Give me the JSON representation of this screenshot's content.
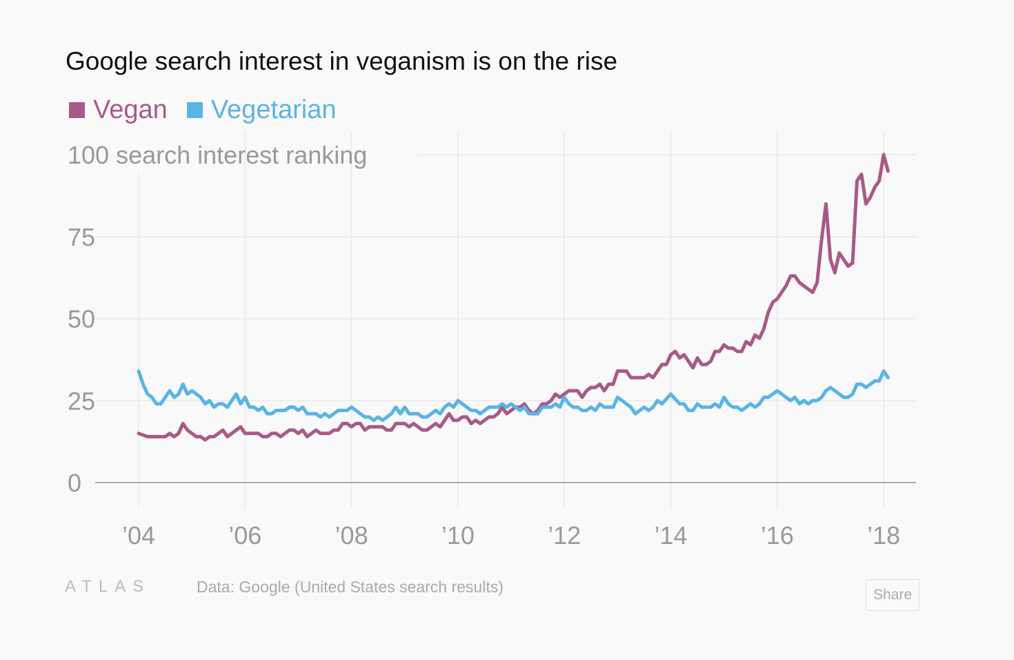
{
  "chart_data": {
    "type": "line",
    "title": "Google search interest in veganism is on the rise",
    "ylabel": "search interest ranking",
    "ylim": [
      0,
      100
    ],
    "yticks": [
      "0",
      "25",
      "50",
      "75",
      "100"
    ],
    "xticks": [
      {
        "date": "2004-01",
        "label": "’04"
      },
      {
        "date": "2006-01",
        "label": "’06"
      },
      {
        "date": "2008-01",
        "label": "’08"
      },
      {
        "date": "2010-01",
        "label": "’10"
      },
      {
        "date": "2012-01",
        "label": "’12"
      },
      {
        "date": "2014-01",
        "label": "’14"
      },
      {
        "date": "2016-01",
        "label": "’16"
      },
      {
        "date": "2018-01",
        "label": "’18"
      }
    ],
    "grid": true,
    "legend_placement": "top-left",
    "series": [
      {
        "name": "Vegan",
        "color": "#a85a87",
        "points": [
          [
            "2004-01",
            15
          ],
          [
            "2004-03",
            14
          ],
          [
            "2004-07",
            14
          ],
          [
            "2004-08",
            15
          ],
          [
            "2004-09",
            14
          ],
          [
            "2004-10",
            15
          ],
          [
            "2004-11",
            18
          ],
          [
            "2004-12",
            16
          ],
          [
            "2005-02",
            14
          ],
          [
            "2005-03",
            14
          ],
          [
            "2005-04",
            13
          ],
          [
            "2005-05",
            14
          ],
          [
            "2005-06",
            14
          ],
          [
            "2005-08",
            16
          ],
          [
            "2005-09",
            14
          ],
          [
            "2005-12",
            17
          ],
          [
            "2006-01",
            15
          ],
          [
            "2006-04",
            15
          ],
          [
            "2006-05",
            14
          ],
          [
            "2006-06",
            14
          ],
          [
            "2006-07",
            15
          ],
          [
            "2006-08",
            15
          ],
          [
            "2006-09",
            14
          ],
          [
            "2006-11",
            16
          ],
          [
            "2006-12",
            16
          ],
          [
            "2007-01",
            15
          ],
          [
            "2007-02",
            16
          ],
          [
            "2007-03",
            14
          ],
          [
            "2007-05",
            16
          ],
          [
            "2007-06",
            15
          ],
          [
            "2007-08",
            15
          ],
          [
            "2007-09",
            16
          ],
          [
            "2007-10",
            16
          ],
          [
            "2007-11",
            18
          ],
          [
            "2007-12",
            18
          ],
          [
            "2008-01",
            17
          ],
          [
            "2008-02",
            18
          ],
          [
            "2008-03",
            18
          ],
          [
            "2008-04",
            16
          ],
          [
            "2008-05",
            17
          ],
          [
            "2008-08",
            17
          ],
          [
            "2008-09",
            16
          ],
          [
            "2008-10",
            16
          ],
          [
            "2008-11",
            18
          ],
          [
            "2009-01",
            18
          ],
          [
            "2009-02",
            17
          ],
          [
            "2009-03",
            18
          ],
          [
            "2009-05",
            16
          ],
          [
            "2009-06",
            16
          ],
          [
            "2009-08",
            18
          ],
          [
            "2009-09",
            17
          ],
          [
            "2009-10",
            19
          ],
          [
            "2009-11",
            21
          ],
          [
            "2009-12",
            19
          ],
          [
            "2010-01",
            19
          ],
          [
            "2010-02",
            20
          ],
          [
            "2010-03",
            20
          ],
          [
            "2010-04",
            18
          ],
          [
            "2010-05",
            19
          ],
          [
            "2010-06",
            18
          ],
          [
            "2010-08",
            20
          ],
          [
            "2010-09",
            20
          ],
          [
            "2010-10",
            21
          ],
          [
            "2010-11",
            23
          ],
          [
            "2010-12",
            21
          ],
          [
            "2011-02",
            23
          ],
          [
            "2011-03",
            23
          ],
          [
            "2011-04",
            24
          ],
          [
            "2011-05",
            22
          ],
          [
            "2011-06",
            21
          ],
          [
            "2011-07",
            22
          ],
          [
            "2011-08",
            24
          ],
          [
            "2011-09",
            24
          ],
          [
            "2011-10",
            25
          ],
          [
            "2011-11",
            27
          ],
          [
            "2011-12",
            26
          ],
          [
            "2012-01",
            27
          ],
          [
            "2012-02",
            28
          ],
          [
            "2012-04",
            28
          ],
          [
            "2012-05",
            26
          ],
          [
            "2012-06",
            28
          ],
          [
            "2012-07",
            29
          ],
          [
            "2012-08",
            29
          ],
          [
            "2012-09",
            30
          ],
          [
            "2012-10",
            28
          ],
          [
            "2012-11",
            30
          ],
          [
            "2012-12",
            30
          ],
          [
            "2013-01",
            34
          ],
          [
            "2013-03",
            34
          ],
          [
            "2013-04",
            32
          ],
          [
            "2013-07",
            32
          ],
          [
            "2013-08",
            33
          ],
          [
            "2013-09",
            32
          ],
          [
            "2013-11",
            36
          ],
          [
            "2013-12",
            36
          ],
          [
            "2014-01",
            39
          ],
          [
            "2014-02",
            40
          ],
          [
            "2014-03",
            38
          ],
          [
            "2014-04",
            39
          ],
          [
            "2014-06",
            35
          ],
          [
            "2014-07",
            38
          ],
          [
            "2014-08",
            36
          ],
          [
            "2014-09",
            36
          ],
          [
            "2014-10",
            37
          ],
          [
            "2014-11",
            40
          ],
          [
            "2014-12",
            40
          ],
          [
            "2015-01",
            42
          ],
          [
            "2015-02",
            41
          ],
          [
            "2015-03",
            41
          ],
          [
            "2015-04",
            40
          ],
          [
            "2015-05",
            40
          ],
          [
            "2015-06",
            43
          ],
          [
            "2015-07",
            42
          ],
          [
            "2015-08",
            45
          ],
          [
            "2015-09",
            44
          ],
          [
            "2015-10",
            47
          ],
          [
            "2015-11",
            52
          ],
          [
            "2015-12",
            55
          ],
          [
            "2016-01",
            56
          ],
          [
            "2016-02",
            58
          ],
          [
            "2016-03",
            60
          ],
          [
            "2016-04",
            63
          ],
          [
            "2016-05",
            63
          ],
          [
            "2016-06",
            61
          ],
          [
            "2016-07",
            60
          ],
          [
            "2016-09",
            58
          ],
          [
            "2016-10",
            61
          ],
          [
            "2016-11",
            74
          ],
          [
            "2016-12",
            85
          ],
          [
            "2017-01",
            68
          ],
          [
            "2017-02",
            64
          ],
          [
            "2017-03",
            70
          ],
          [
            "2017-05",
            66
          ],
          [
            "2017-06",
            67
          ],
          [
            "2017-07",
            92
          ],
          [
            "2017-08",
            94
          ],
          [
            "2017-09",
            85
          ],
          [
            "2017-10",
            87
          ],
          [
            "2017-11",
            90
          ],
          [
            "2017-12",
            92
          ],
          [
            "2018-01",
            100
          ],
          [
            "2018-02",
            95
          ]
        ]
      },
      {
        "name": "Vegetarian",
        "color": "#5ab4e5",
        "points": [
          [
            "2004-01",
            34
          ],
          [
            "2004-02",
            30
          ],
          [
            "2004-03",
            27
          ],
          [
            "2004-04",
            26
          ],
          [
            "2004-05",
            24
          ],
          [
            "2004-06",
            24
          ],
          [
            "2004-08",
            28
          ],
          [
            "2004-09",
            26
          ],
          [
            "2004-10",
            27
          ],
          [
            "2004-11",
            30
          ],
          [
            "2004-12",
            27
          ],
          [
            "2005-01",
            28
          ],
          [
            "2005-03",
            26
          ],
          [
            "2005-04",
            24
          ],
          [
            "2005-05",
            25
          ],
          [
            "2005-06",
            23
          ],
          [
            "2005-07",
            24
          ],
          [
            "2005-08",
            24
          ],
          [
            "2005-09",
            23
          ],
          [
            "2005-11",
            27
          ],
          [
            "2005-12",
            24
          ],
          [
            "2006-01",
            26
          ],
          [
            "2006-02",
            23
          ],
          [
            "2006-03",
            23
          ],
          [
            "2006-04",
            22
          ],
          [
            "2006-05",
            23
          ],
          [
            "2006-06",
            21
          ],
          [
            "2006-07",
            21
          ],
          [
            "2006-08",
            22
          ],
          [
            "2006-10",
            22
          ],
          [
            "2006-11",
            23
          ],
          [
            "2006-12",
            23
          ],
          [
            "2007-01",
            22
          ],
          [
            "2007-02",
            23
          ],
          [
            "2007-03",
            21
          ],
          [
            "2007-05",
            21
          ],
          [
            "2007-06",
            20
          ],
          [
            "2007-07",
            21
          ],
          [
            "2007-08",
            20
          ],
          [
            "2007-10",
            22
          ],
          [
            "2007-12",
            22
          ],
          [
            "2008-01",
            23
          ],
          [
            "2008-03",
            21
          ],
          [
            "2008-04",
            20
          ],
          [
            "2008-05",
            20
          ],
          [
            "2008-06",
            19
          ],
          [
            "2008-07",
            20
          ],
          [
            "2008-08",
            19
          ],
          [
            "2008-10",
            21
          ],
          [
            "2008-11",
            23
          ],
          [
            "2008-12",
            21
          ],
          [
            "2009-01",
            23
          ],
          [
            "2009-02",
            21
          ],
          [
            "2009-04",
            21
          ],
          [
            "2009-05",
            20
          ],
          [
            "2009-06",
            20
          ],
          [
            "2009-08",
            22
          ],
          [
            "2009-09",
            21
          ],
          [
            "2009-10",
            23
          ],
          [
            "2009-11",
            24
          ],
          [
            "2009-12",
            23
          ],
          [
            "2010-01",
            25
          ],
          [
            "2010-03",
            23
          ],
          [
            "2010-04",
            22
          ],
          [
            "2010-05",
            22
          ],
          [
            "2010-06",
            21
          ],
          [
            "2010-08",
            23
          ],
          [
            "2010-10",
            23
          ],
          [
            "2010-11",
            24
          ],
          [
            "2010-12",
            23
          ],
          [
            "2011-01",
            24
          ],
          [
            "2011-03",
            22
          ],
          [
            "2011-04",
            23
          ],
          [
            "2011-05",
            21
          ],
          [
            "2011-07",
            21
          ],
          [
            "2011-08",
            23
          ],
          [
            "2011-10",
            23
          ],
          [
            "2011-11",
            24
          ],
          [
            "2011-12",
            23
          ],
          [
            "2012-01",
            26
          ],
          [
            "2012-02",
            24
          ],
          [
            "2012-03",
            23
          ],
          [
            "2012-04",
            23
          ],
          [
            "2012-05",
            22
          ],
          [
            "2012-06",
            22
          ],
          [
            "2012-07",
            23
          ],
          [
            "2012-08",
            22
          ],
          [
            "2012-09",
            24
          ],
          [
            "2012-10",
            23
          ],
          [
            "2012-12",
            23
          ],
          [
            "2013-01",
            26
          ],
          [
            "2013-04",
            23
          ],
          [
            "2013-05",
            21
          ],
          [
            "2013-07",
            23
          ],
          [
            "2013-08",
            22
          ],
          [
            "2013-09",
            23
          ],
          [
            "2013-10",
            25
          ],
          [
            "2013-11",
            24
          ],
          [
            "2014-01",
            27
          ],
          [
            "2014-03",
            24
          ],
          [
            "2014-04",
            24
          ],
          [
            "2014-05",
            22
          ],
          [
            "2014-06",
            22
          ],
          [
            "2014-07",
            24
          ],
          [
            "2014-08",
            23
          ],
          [
            "2014-10",
            23
          ],
          [
            "2014-11",
            24
          ],
          [
            "2014-12",
            23
          ],
          [
            "2015-01",
            26
          ],
          [
            "2015-02",
            24
          ],
          [
            "2015-03",
            23
          ],
          [
            "2015-04",
            23
          ],
          [
            "2015-05",
            22
          ],
          [
            "2015-07",
            24
          ],
          [
            "2015-08",
            23
          ],
          [
            "2015-09",
            24
          ],
          [
            "2015-10",
            26
          ],
          [
            "2015-11",
            26
          ],
          [
            "2016-01",
            28
          ],
          [
            "2016-03",
            26
          ],
          [
            "2016-04",
            25
          ],
          [
            "2016-05",
            26
          ],
          [
            "2016-06",
            24
          ],
          [
            "2016-07",
            25
          ],
          [
            "2016-08",
            24
          ],
          [
            "2016-09",
            25
          ],
          [
            "2016-10",
            25
          ],
          [
            "2016-11",
            26
          ],
          [
            "2016-12",
            28
          ],
          [
            "2017-01",
            29
          ],
          [
            "2017-03",
            27
          ],
          [
            "2017-04",
            26
          ],
          [
            "2017-05",
            26
          ],
          [
            "2017-06",
            27
          ],
          [
            "2017-07",
            30
          ],
          [
            "2017-08",
            30
          ],
          [
            "2017-09",
            29
          ],
          [
            "2017-10",
            30
          ],
          [
            "2017-11",
            31
          ],
          [
            "2017-12",
            31
          ],
          [
            "2018-01",
            34
          ],
          [
            "2018-02",
            32
          ]
        ]
      }
    ]
  },
  "footer": {
    "logo": "ATLAS",
    "source": "Data:  Google (United States search results)",
    "share_label": "Share"
  }
}
